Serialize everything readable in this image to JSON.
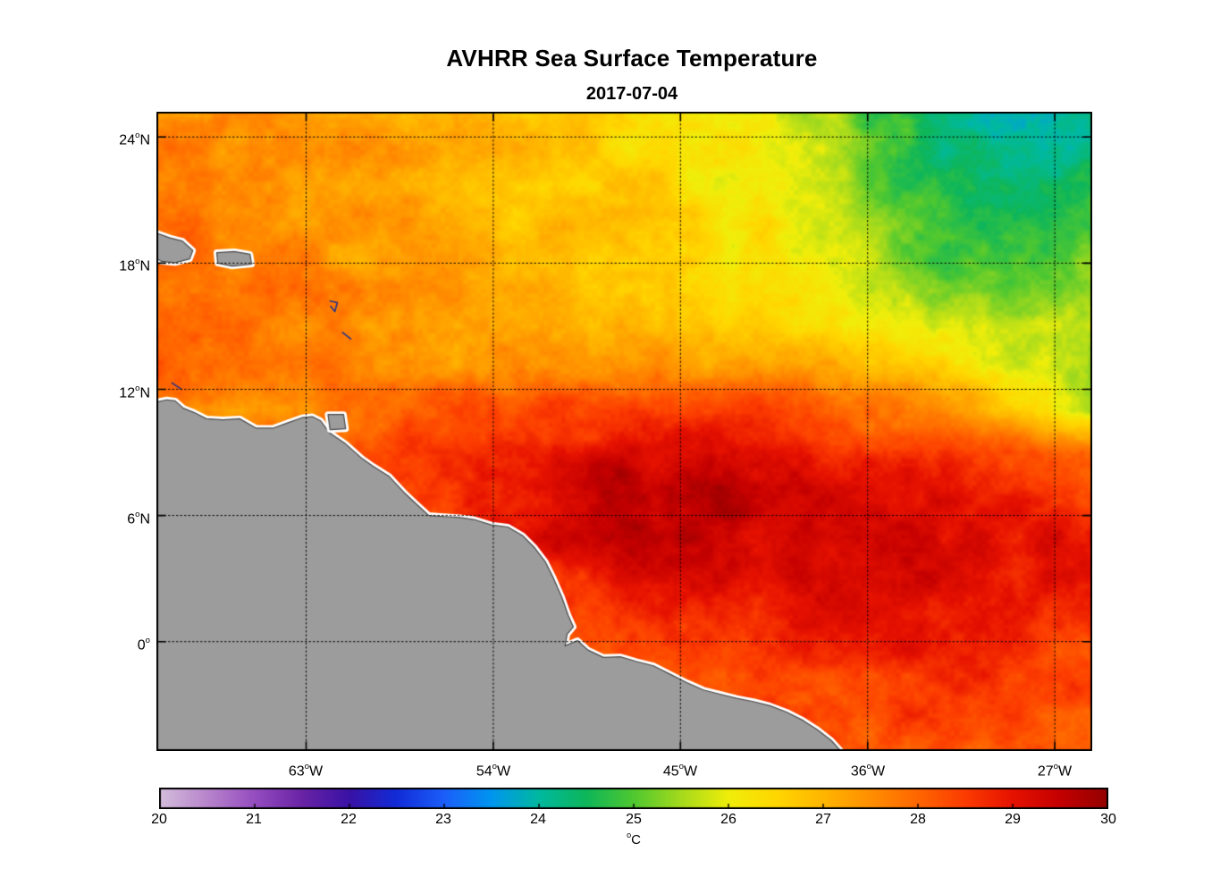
{
  "title": "AVHRR Sea Surface Temperature",
  "subtitle": "2017-07-04",
  "axes": {
    "degree_symbol": "o",
    "lat_ticks": [
      {
        "value": "24",
        "suffix": "N"
      },
      {
        "value": "18",
        "suffix": "N"
      },
      {
        "value": "12",
        "suffix": "N"
      },
      {
        "value": "6",
        "suffix": "N"
      },
      {
        "value": "0",
        "suffix": ""
      }
    ],
    "lon_ticks": [
      {
        "value": "63",
        "suffix": "W"
      },
      {
        "value": "54",
        "suffix": "W"
      },
      {
        "value": "45",
        "suffix": "W"
      },
      {
        "value": "36",
        "suffix": "W"
      },
      {
        "value": "27",
        "suffix": "W"
      }
    ]
  },
  "colorbar": {
    "ticks": [
      "20",
      "21",
      "22",
      "23",
      "24",
      "25",
      "26",
      "27",
      "28",
      "29",
      "30"
    ],
    "unit": "C",
    "min": 20,
    "max": 30
  },
  "chart_data": {
    "type": "heatmap",
    "title": "AVHRR Sea Surface Temperature",
    "subtitle": "2017-07-04",
    "units": "degC",
    "lon_range": [
      -70.2,
      -25.2
    ],
    "lat_range": [
      -5.2,
      25.2
    ],
    "lon_gridlines": [
      -63,
      -54,
      -45,
      -36,
      -27
    ],
    "lat_gridlines": [
      0,
      6,
      12,
      18,
      24
    ],
    "colorbar_range": [
      20,
      30
    ],
    "sst_note": "SST grid in degC, rows ordered north(25.2N) to south(5.2S), cols west(70.2W) to east(25.2W)",
    "sst": [
      [
        27.6,
        27.6,
        27.5,
        27.4,
        27.3,
        27.2,
        27.1,
        27.0,
        27.0,
        26.9,
        26.8,
        26.6,
        26.5,
        26.3,
        26.2,
        26.0,
        25.6,
        25.2,
        24.8,
        24.5,
        24.2,
        24.0,
        23.9,
        24.1
      ],
      [
        27.7,
        27.6,
        27.5,
        27.5,
        27.4,
        27.3,
        27.2,
        27.1,
        27.0,
        26.9,
        26.8,
        26.7,
        26.5,
        26.4,
        26.2,
        26.0,
        25.7,
        25.3,
        24.8,
        24.4,
        24.2,
        24.0,
        24.1,
        24.3
      ],
      [
        27.8,
        27.7,
        27.6,
        27.5,
        27.4,
        27.3,
        27.2,
        27.1,
        27.0,
        26.9,
        26.8,
        26.7,
        26.6,
        26.4,
        26.2,
        26.1,
        25.9,
        25.5,
        25.1,
        24.7,
        24.4,
        24.3,
        24.5,
        24.7
      ],
      [
        27.9,
        27.8,
        27.7,
        27.6,
        27.5,
        27.4,
        27.3,
        27.2,
        27.1,
        27.0,
        26.9,
        26.8,
        26.7,
        26.5,
        26.3,
        26.2,
        26.0,
        25.7,
        25.4,
        25.0,
        24.7,
        24.6,
        24.8,
        25.0
      ],
      [
        28.0,
        27.9,
        27.8,
        27.7,
        27.6,
        27.5,
        27.4,
        27.2,
        27.1,
        27.0,
        26.9,
        26.8,
        26.7,
        26.6,
        26.4,
        26.3,
        26.1,
        25.9,
        25.6,
        25.3,
        25.1,
        25.0,
        25.2,
        25.4
      ],
      [
        28.1,
        28.0,
        27.9,
        27.8,
        27.7,
        27.6,
        27.4,
        27.3,
        27.2,
        27.1,
        27.0,
        26.9,
        26.8,
        26.7,
        26.6,
        26.5,
        26.3,
        26.1,
        25.9,
        25.7,
        25.6,
        25.5,
        25.7,
        25.9
      ],
      [
        28.2,
        28.1,
        28.0,
        27.9,
        27.8,
        27.7,
        27.6,
        27.5,
        27.4,
        27.3,
        27.3,
        27.3,
        27.4,
        27.5,
        27.5,
        27.5,
        27.4,
        27.2,
        27.0,
        26.8,
        26.5,
        26.1,
        25.7,
        25.4
      ],
      [
        27.6,
        27.3,
        27.1,
        27.2,
        27.5,
        27.8,
        28.0,
        28.1,
        28.2,
        28.3,
        28.4,
        28.4,
        28.5,
        28.5,
        28.5,
        28.4,
        28.2,
        28.0,
        27.8,
        27.5,
        27.2,
        26.6,
        26.1,
        25.8
      ],
      [
        28.0,
        28.0,
        28.0,
        28.2,
        28.4,
        28.5,
        28.6,
        28.7,
        28.8,
        28.9,
        29.0,
        29.1,
        29.1,
        29.0,
        29.0,
        28.9,
        28.8,
        28.7,
        28.6,
        28.5,
        28.5,
        28.4,
        28.3,
        28.2
      ],
      [
        28.3,
        28.3,
        28.3,
        28.3,
        28.4,
        28.5,
        28.6,
        28.7,
        28.8,
        29.0,
        29.3,
        29.5,
        29.7,
        29.7,
        29.5,
        29.3,
        29.2,
        29.1,
        29.0,
        29.0,
        28.9,
        28.8,
        28.7,
        28.6
      ],
      [
        28.4,
        28.4,
        28.4,
        28.4,
        28.4,
        28.5,
        28.5,
        28.6,
        28.7,
        28.9,
        29.2,
        29.4,
        29.6,
        29.6,
        29.5,
        29.3,
        29.2,
        29.3,
        29.4,
        29.3,
        29.2,
        29.1,
        29.0,
        28.9
      ],
      [
        28.4,
        28.4,
        28.4,
        28.4,
        28.4,
        28.4,
        28.5,
        28.5,
        28.6,
        28.7,
        28.8,
        28.9,
        29.0,
        29.1,
        29.1,
        29.0,
        29.1,
        29.2,
        29.3,
        29.2,
        29.1,
        29.0,
        28.9,
        28.8
      ],
      [
        28.3,
        28.3,
        28.3,
        28.3,
        28.3,
        28.3,
        28.4,
        28.4,
        28.4,
        28.4,
        28.4,
        28.5,
        28.6,
        28.7,
        28.8,
        28.8,
        28.9,
        28.9,
        29.0,
        29.0,
        28.9,
        28.8,
        28.7,
        28.6
      ],
      [
        28.2,
        28.2,
        28.2,
        28.2,
        28.2,
        28.2,
        28.2,
        28.2,
        28.3,
        28.3,
        28.3,
        28.3,
        28.3,
        28.4,
        28.4,
        28.5,
        28.5,
        28.6,
        28.7,
        28.7,
        28.6,
        28.5,
        28.4,
        28.3
      ],
      [
        28.1,
        28.1,
        28.1,
        28.1,
        28.1,
        28.1,
        28.1,
        28.1,
        28.1,
        28.2,
        28.2,
        28.2,
        28.2,
        28.2,
        28.2,
        28.3,
        28.3,
        28.3,
        28.4,
        28.4,
        28.4,
        28.3,
        28.3,
        28.2
      ],
      [
        28.0,
        28.0,
        28.0,
        28.0,
        28.0,
        28.0,
        28.0,
        28.0,
        28.0,
        28.1,
        28.1,
        28.1,
        28.1,
        28.1,
        28.1,
        28.2,
        28.2,
        28.2,
        28.3,
        28.3,
        28.3,
        28.2,
        28.2,
        28.1
      ]
    ],
    "colormap": [
      [
        20.0,
        212,
        190,
        220
      ],
      [
        20.5,
        184,
        134,
        204
      ],
      [
        21.0,
        150,
        78,
        192
      ],
      [
        21.5,
        106,
        36,
        166
      ],
      [
        22.0,
        58,
        18,
        165
      ],
      [
        22.5,
        18,
        44,
        216
      ],
      [
        23.0,
        28,
        95,
        250
      ],
      [
        23.5,
        0,
        150,
        240
      ],
      [
        24.0,
        0,
        185,
        160
      ],
      [
        24.5,
        14,
        182,
        90
      ],
      [
        25.0,
        80,
        200,
        48
      ],
      [
        25.5,
        165,
        218,
        28
      ],
      [
        26.0,
        240,
        238,
        10
      ],
      [
        26.5,
        255,
        215,
        0
      ],
      [
        27.0,
        255,
        182,
        0
      ],
      [
        27.5,
        255,
        143,
        0
      ],
      [
        28.0,
        255,
        102,
        0
      ],
      [
        28.5,
        252,
        60,
        0
      ],
      [
        29.0,
        230,
        18,
        0
      ],
      [
        29.5,
        196,
        0,
        0
      ],
      [
        30.0,
        148,
        0,
        0
      ]
    ],
    "land_color": "#9c9c9c",
    "coast_halo": "#ffffff",
    "coast_line": "#4a4a4a",
    "islet_color": "#26308c",
    "land_polygons": {
      "mainland": [
        [
          -70.2,
          11.4
        ],
        [
          -69.7,
          11.5
        ],
        [
          -69.3,
          11.45
        ],
        [
          -68.9,
          11.1
        ],
        [
          -68.4,
          10.9
        ],
        [
          -67.8,
          10.6
        ],
        [
          -67.0,
          10.55
        ],
        [
          -66.2,
          10.6
        ],
        [
          -65.4,
          10.15
        ],
        [
          -64.6,
          10.15
        ],
        [
          -63.9,
          10.4
        ],
        [
          -63.2,
          10.65
        ],
        [
          -62.7,
          10.7
        ],
        [
          -62.3,
          10.5
        ],
        [
          -61.9,
          9.95
        ],
        [
          -61.1,
          9.4
        ],
        [
          -60.3,
          8.7
        ],
        [
          -59.8,
          8.35
        ],
        [
          -59.0,
          7.85
        ],
        [
          -58.3,
          7.1
        ],
        [
          -57.6,
          6.45
        ],
        [
          -57.1,
          6.0
        ],
        [
          -56.4,
          5.95
        ],
        [
          -55.6,
          5.9
        ],
        [
          -54.9,
          5.8
        ],
        [
          -54.1,
          5.55
        ],
        [
          -53.3,
          5.45
        ],
        [
          -52.6,
          5.05
        ],
        [
          -52.0,
          4.45
        ],
        [
          -51.5,
          3.8
        ],
        [
          -51.1,
          3.0
        ],
        [
          -50.7,
          2.1
        ],
        [
          -50.4,
          1.25
        ],
        [
          -50.15,
          0.7
        ],
        [
          -50.45,
          0.35
        ],
        [
          -50.55,
          -0.2
        ],
        [
          -49.95,
          0.05
        ],
        [
          -49.45,
          -0.4
        ],
        [
          -48.7,
          -0.75
        ],
        [
          -47.9,
          -0.72
        ],
        [
          -47.1,
          -0.95
        ],
        [
          -46.3,
          -1.15
        ],
        [
          -45.5,
          -1.55
        ],
        [
          -44.7,
          -1.95
        ],
        [
          -43.9,
          -2.3
        ],
        [
          -43.1,
          -2.5
        ],
        [
          -42.3,
          -2.7
        ],
        [
          -41.5,
          -2.85
        ],
        [
          -40.7,
          -3.05
        ],
        [
          -39.9,
          -3.35
        ],
        [
          -39.1,
          -3.75
        ],
        [
          -38.4,
          -4.2
        ],
        [
          -37.75,
          -4.7
        ],
        [
          -37.2,
          -5.3
        ],
        [
          -70.2,
          -5.3
        ]
      ],
      "trinidad": [
        [
          -61.95,
          10.8
        ],
        [
          -61.2,
          10.8
        ],
        [
          -61.1,
          10.12
        ],
        [
          -61.85,
          10.08
        ]
      ],
      "hispaniola": [
        [
          -70.25,
          19.45
        ],
        [
          -69.55,
          19.2
        ],
        [
          -68.95,
          19.05
        ],
        [
          -68.45,
          18.6
        ],
        [
          -68.6,
          18.2
        ],
        [
          -69.3,
          18.02
        ],
        [
          -69.95,
          18.08
        ],
        [
          -70.25,
          18.25
        ]
      ],
      "puerto_rico": [
        [
          -67.3,
          18.5
        ],
        [
          -66.45,
          18.55
        ],
        [
          -65.7,
          18.42
        ],
        [
          -65.62,
          17.95
        ],
        [
          -66.55,
          17.86
        ],
        [
          -67.25,
          18.0
        ]
      ]
    },
    "islet_marks": [
      [
        [
          -61.85,
          16.2
        ],
        [
          -61.5,
          16.12
        ],
        [
          -61.62,
          15.7
        ],
        [
          -61.82,
          15.95
        ]
      ],
      [
        [
          -61.25,
          14.7
        ],
        [
          -60.85,
          14.4
        ]
      ],
      [
        [
          -69.45,
          12.3
        ],
        [
          -69.0,
          12.0
        ]
      ]
    ]
  }
}
